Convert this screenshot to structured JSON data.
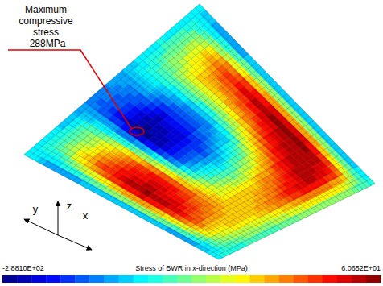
{
  "chart_data": {
    "type": "contour",
    "stress": [
      [
        -150,
        -200,
        -210,
        -200,
        -200,
        -200,
        -210,
        -200,
        -150
      ],
      [
        -170,
        -100,
        -20,
        30,
        55,
        40,
        0,
        -80,
        -160
      ],
      [
        -180,
        -120,
        -60,
        -10,
        10,
        0,
        -30,
        -60,
        -140
      ],
      [
        -200,
        -230,
        -288,
        -270,
        -200,
        -120,
        -60,
        -50,
        -140
      ],
      [
        -190,
        -210,
        -260,
        -250,
        -220,
        -150,
        -60,
        -20,
        -130
      ],
      [
        -170,
        -150,
        -180,
        -200,
        -170,
        -100,
        -20,
        20,
        -120
      ],
      [
        -160,
        -100,
        -60,
        -60,
        -40,
        10,
        40,
        40,
        -120
      ],
      [
        -170,
        -80,
        -10,
        30,
        55,
        60.652,
        50,
        10,
        -130
      ],
      [
        -150,
        -210,
        -210,
        -200,
        -200,
        -200,
        -210,
        -200,
        -150
      ]
    ],
    "colorbar": {
      "label": "Stress of BWR in x-direction (MPa)",
      "range": [
        -288.1,
        60.652
      ],
      "ticks": [
        {
          "value": -288.1,
          "label": "-2.8810E+02"
        },
        {
          "value": 60.652,
          "label": "6.0652E+01"
        }
      ]
    },
    "annotation": [
      "Maximum",
      "compressive",
      "stress",
      "-288MPa"
    ],
    "axis_labels": {
      "x": "x",
      "y": "y",
      "z": "z"
    }
  }
}
